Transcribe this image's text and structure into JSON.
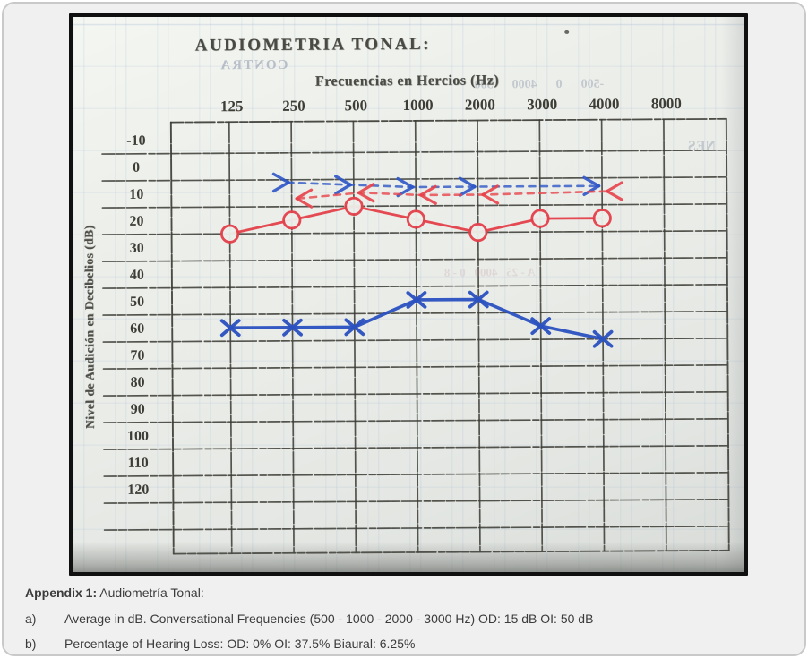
{
  "scan": {
    "title": "AUDIOMETRIA TONAL:",
    "x_axis_title": "Frecuencias en Hercios (Hz)",
    "y_axis_title": "Nivel de Audición en Decibelios (dB)",
    "artifacts": {
      "bleed_text_1": "CONTRA",
      "bleed_text_2": "-500      0      4000      500",
      "bleed_text_3": "NES",
      "bleed_text_4": "A - 25   4000   0 - 8"
    }
  },
  "chart_data": {
    "type": "line",
    "title": "AUDIOMETRIA TONAL:",
    "xlabel": "Frecuencias en Hercios (Hz)",
    "ylabel": "Nivel de Audición en Decibelios (dB)",
    "categories_hz": [
      "125",
      "250",
      "500",
      "1000",
      "2000",
      "3000",
      "4000",
      "8000"
    ],
    "y_ticks_db": [
      -10,
      0,
      10,
      20,
      30,
      40,
      50,
      60,
      70,
      80,
      90,
      100,
      110,
      120
    ],
    "y_range_db": [
      -10,
      120
    ],
    "y_step_db": 10,
    "grid": true,
    "legend": "none",
    "series": [
      {
        "name": "OI left ear bone conduction (dashed, > arrows)",
        "symbol": ">",
        "style": "dashed",
        "color": "#2e56c6",
        "x_hz": [
          "250",
          "500",
          "1000",
          "2000",
          "4000"
        ],
        "values_db": [
          1,
          2,
          3,
          3,
          3
        ],
        "approx": true
      },
      {
        "name": "OD right ear bone conduction (dashed, < arrows)",
        "symbol": "<",
        "style": "dashed",
        "color": "#e8434b",
        "x_hz": [
          "250",
          "500",
          "1000",
          "2000",
          "4000"
        ],
        "values_db": [
          7,
          5,
          6,
          6,
          5
        ],
        "approx": true
      },
      {
        "name": "OD right ear air conduction (circles)",
        "symbol": "circle",
        "style": "solid",
        "color": "#e4404a",
        "x_hz": [
          "125",
          "250",
          "500",
          "1000",
          "2000",
          "3000",
          "4000"
        ],
        "values_db": [
          20,
          15,
          10,
          15,
          20,
          15,
          15
        ],
        "conversational_average_db": 15
      },
      {
        "name": "OI left ear air conduction (X marks)",
        "symbol": "x",
        "style": "solid",
        "color": "#2b51c0",
        "x_hz": [
          "125",
          "250",
          "500",
          "1000",
          "2000",
          "3000",
          "4000"
        ],
        "values_db": [
          55,
          55,
          55,
          45,
          45,
          55,
          60
        ],
        "conversational_average_db": 50
      }
    ]
  },
  "caption": {
    "appendix_label": "Appendix 1:",
    "appendix_title": " Audiometría Tonal:",
    "items": [
      {
        "marker": "a)",
        "text": "Average in dB. Conversational Frequencies (500 - 1000 - 2000 - 3000 Hz) OD: 15 dB OI: 50 dB"
      },
      {
        "marker": "b)",
        "text": "Percentage of Hearing Loss: OD: 0% OI: 37.5% Biaural: 6.25%"
      }
    ]
  }
}
